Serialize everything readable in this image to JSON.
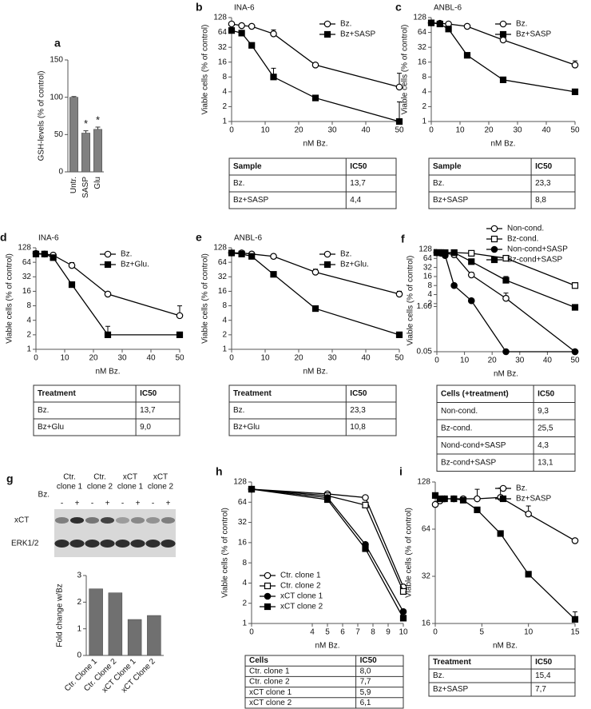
{
  "chart_data": [
    {
      "panel": "a",
      "type": "bar",
      "categories": [
        "Untr.",
        "SASP",
        "Glu"
      ],
      "values": [
        100,
        52,
        57
      ],
      "errors": [
        1,
        3,
        3
      ],
      "color": "#808080",
      "ylabel": "GSH-levels (% of control)",
      "ylim": [
        0,
        150
      ],
      "yticks": [
        0,
        50,
        100,
        150
      ],
      "annotations": [
        {
          "category": "SASP",
          "text": "*"
        },
        {
          "category": "Glu",
          "text": "*"
        }
      ]
    },
    {
      "panel": "b",
      "type": "line",
      "title": "INA-6",
      "xlabel": "nM Bz.",
      "ylabel": "Viable cells (% of control)",
      "yscale": "log",
      "x": [
        0,
        3,
        6,
        12.5,
        25,
        50
      ],
      "xlim": [
        0,
        50
      ],
      "xticks": [
        0,
        10,
        20,
        30,
        40,
        50
      ],
      "ylim": [
        1,
        128
      ],
      "yticks": [
        1,
        2,
        4,
        8,
        16,
        32,
        64,
        128
      ],
      "legend": "upper right",
      "series": [
        {
          "name": "Bz.",
          "color": "#000000",
          "marker": "circle",
          "filled": false,
          "values": [
            95,
            88,
            85,
            60,
            14,
            5
          ],
          "errors": [
            null,
            null,
            null,
            12,
            null,
            4.5
          ]
        },
        {
          "name": "Bz+SASP",
          "color": "#000000",
          "marker": "square",
          "filled": true,
          "values": [
            70,
            62,
            35,
            8,
            3,
            1
          ],
          "errors": [
            null,
            null,
            null,
            4,
            null,
            1.5
          ]
        }
      ],
      "table": {
        "columns": [
          "Sample",
          "IC50"
        ],
        "rows": [
          [
            "Bz.",
            "13,7"
          ],
          [
            "Bz+SASP",
            "4,4"
          ]
        ]
      }
    },
    {
      "panel": "c",
      "type": "line",
      "title": "ANBL-6",
      "xlabel": "nM Bz.",
      "ylabel": "Viable cells (% of control)",
      "yscale": "log",
      "x": [
        0,
        3,
        6,
        12.5,
        25,
        50
      ],
      "xlim": [
        0,
        50
      ],
      "xticks": [
        0,
        10,
        20,
        30,
        40,
        50
      ],
      "ylim": [
        1,
        128
      ],
      "yticks": [
        1,
        2,
        4,
        8,
        16,
        32,
        64,
        128
      ],
      "legend": "upper right",
      "series": [
        {
          "name": "Bz.",
          "color": "#000000",
          "marker": "circle",
          "filled": false,
          "values": [
            100,
            98,
            95,
            85,
            45,
            14
          ],
          "errors": [
            null,
            null,
            null,
            null,
            10,
            3
          ]
        },
        {
          "name": "Bz+SASP",
          "color": "#000000",
          "marker": "square",
          "filled": true,
          "values": [
            100,
            95,
            75,
            22,
            7,
            4
          ],
          "errors": [
            null,
            null,
            null,
            null,
            null,
            null
          ]
        }
      ],
      "table": {
        "columns": [
          "Sample",
          "IC50"
        ],
        "rows": [
          [
            "Bz.",
            "23,3"
          ],
          [
            "Bz+SASP",
            "8,8"
          ]
        ]
      }
    },
    {
      "panel": "d",
      "type": "line",
      "title": "INA-6",
      "xlabel": "nM Bz.",
      "ylabel": "Viable cells (% of control)",
      "yscale": "log",
      "x": [
        0,
        3,
        6,
        12.5,
        25,
        50
      ],
      "xlim": [
        0,
        50
      ],
      "xticks": [
        0,
        10,
        20,
        30,
        40,
        50
      ],
      "ylim": [
        1,
        128
      ],
      "yticks": [
        1,
        2,
        4,
        8,
        16,
        32,
        64,
        128
      ],
      "legend": "upper right",
      "series": [
        {
          "name": "Bz.",
          "color": "#000000",
          "marker": "circle",
          "filled": false,
          "values": [
            98,
            95,
            90,
            55,
            14,
            5
          ],
          "errors": [
            null,
            null,
            null,
            8,
            null,
            3
          ]
        },
        {
          "name": "Bz+Glu.",
          "color": "#000000",
          "marker": "square",
          "filled": true,
          "values": [
            95,
            95,
            80,
            22,
            2,
            2
          ],
          "errors": [
            null,
            null,
            null,
            3,
            1,
            null
          ]
        }
      ],
      "table": {
        "columns": [
          "Treatment",
          "IC50"
        ],
        "rows": [
          [
            "Bz.",
            "13,7"
          ],
          [
            "Bz+Glu",
            "9,0"
          ]
        ]
      }
    },
    {
      "panel": "e",
      "type": "line",
      "title": "ANBL-6",
      "xlabel": "nM Bz.",
      "ylabel": "Viable cells (% of control)",
      "yscale": "log",
      "x": [
        0,
        3,
        6,
        12.5,
        25,
        50
      ],
      "xlim": [
        0,
        50
      ],
      "xticks": [
        0,
        10,
        20,
        30,
        40,
        50
      ],
      "ylim": [
        1,
        128
      ],
      "yticks": [
        1,
        2,
        4,
        8,
        16,
        32,
        64,
        128
      ],
      "legend": "upper right",
      "series": [
        {
          "name": "Bz.",
          "color": "#000000",
          "marker": "circle",
          "filled": false,
          "values": [
            100,
            100,
            95,
            85,
            40,
            14
          ],
          "errors": [
            null,
            null,
            null,
            null,
            6,
            2
          ]
        },
        {
          "name": "Bz+Glu.",
          "color": "#000000",
          "marker": "square",
          "filled": true,
          "values": [
            100,
            95,
            85,
            36,
            7,
            2
          ],
          "errors": [
            null,
            null,
            null,
            null,
            1,
            null
          ]
        }
      ],
      "table": {
        "columns": [
          "Treatment",
          "IC50"
        ],
        "rows": [
          [
            "Bz.",
            "23,3"
          ],
          [
            "Bz+Glu",
            "10,8"
          ]
        ]
      }
    },
    {
      "panel": "f",
      "type": "line",
      "xlabel": "nM Bz.",
      "ylabel": "Viable cells (% of control)",
      "yscale": "log",
      "x": [
        0,
        1.5,
        3,
        6.25,
        12.5,
        25,
        50
      ],
      "xlim": [
        0,
        50
      ],
      "xticks": [
        0,
        10,
        20,
        30,
        40,
        50
      ],
      "ylim": [
        0.05,
        128
      ],
      "yticks": [
        0.05,
        {
          "value": 1.6,
          "label": "1.60"
        },
        2,
        4,
        8,
        16,
        32,
        64,
        128
      ],
      "legend": "above",
      "series": [
        {
          "name": "Non-cond.",
          "color": "#000000",
          "marker": "circle",
          "filled": false,
          "values": [
            100,
            100,
            95,
            85,
            18,
            3,
            0.05
          ],
          "errors": [
            null,
            null,
            null,
            null,
            4,
            1.5,
            null
          ]
        },
        {
          "name": "Bz-cond.",
          "color": "#000000",
          "marker": "square",
          "filled": false,
          "values": [
            100,
            100,
            100,
            100,
            95,
            65,
            8
          ],
          "errors": [
            null,
            null,
            null,
            null,
            null,
            null,
            2
          ]
        },
        {
          "name": "Non-cond+SASP",
          "color": "#000000",
          "marker": "circle",
          "filled": true,
          "values": [
            100,
            95,
            80,
            8,
            2.5,
            0.05,
            0.05
          ],
          "errors": [
            null,
            null,
            null,
            null,
            null,
            null,
            null
          ]
        },
        {
          "name": "Bz-cond+SASP",
          "color": "#000000",
          "marker": "square",
          "filled": true,
          "values": [
            100,
            100,
            95,
            100,
            50,
            12,
            1.5
          ],
          "errors": [
            null,
            null,
            null,
            null,
            null,
            4,
            null
          ]
        }
      ],
      "table": {
        "columns": [
          "Cells (+treatment)",
          "IC50"
        ],
        "rows": [
          [
            "Non-cond.",
            "9,3"
          ],
          [
            "Bz-cond.",
            "25,5"
          ],
          [
            "Nond-cond+SASP",
            "4,3"
          ],
          [
            "Bz-cond+SASP",
            "13,1"
          ]
        ]
      }
    },
    {
      "panel": "g",
      "type": "bar",
      "blot": {
        "groups": [
          [
            "Ctr.",
            "clone 1"
          ],
          [
            "Ctr.",
            "clone 2"
          ],
          [
            "xCT",
            "clone 1"
          ],
          [
            "xCT",
            "clone 2"
          ]
        ],
        "treatment": "Bz.",
        "lanes": [
          "-",
          "+",
          "-",
          "+",
          "-",
          "+",
          "-",
          "+"
        ],
        "proteins": [
          "xCT",
          "ERK1/2"
        ]
      },
      "categories": [
        "Ctr. Clone 1",
        "Ctr. Clone 2",
        "xCT Clone 1",
        "xCT Clone 2"
      ],
      "values": [
        2.5,
        2.35,
        1.35,
        1.5
      ],
      "color": "#707070",
      "ylabel": "Fold change w/Bz",
      "ylim": [
        0,
        3
      ],
      "yticks": [
        0,
        1,
        2,
        3
      ]
    },
    {
      "panel": "h",
      "type": "line",
      "xlabel": "nM Bz.",
      "ylabel": "Viable cells (% of control)",
      "yscale": "log",
      "x": [
        0,
        5,
        7.5,
        10
      ],
      "xlim": [
        0,
        10
      ],
      "xticks": [
        0,
        4,
        5,
        6,
        7,
        8,
        9,
        10
      ],
      "ylim": [
        1,
        128
      ],
      "yticks": [
        1,
        2,
        4,
        8,
        16,
        32,
        64,
        128
      ],
      "legend": "lower left",
      "series": [
        {
          "name": "Ctr. clone 1",
          "color": "#000000",
          "marker": "circle",
          "filled": false,
          "values": [
            100,
            85,
            75,
            3.5
          ]
        },
        {
          "name": "Ctr. clone 2",
          "color": "#000000",
          "marker": "square",
          "filled": false,
          "values": [
            100,
            80,
            58,
            3
          ]
        },
        {
          "name": "xCT clone 1",
          "color": "#000000",
          "marker": "circle",
          "filled": true,
          "values": [
            100,
            75,
            15,
            1.5
          ]
        },
        {
          "name": "xCT clone 2",
          "color": "#000000",
          "marker": "square",
          "filled": true,
          "values": [
            100,
            70,
            13,
            1.2
          ]
        }
      ],
      "table": {
        "columns": [
          "Cells",
          "IC50"
        ],
        "rows": [
          [
            "Ctr. clone 1",
            "8,0"
          ],
          [
            "Ctr. clone 2",
            "7,7"
          ],
          [
            "xCT clone 1",
            "5,9"
          ],
          [
            "xCT clone 2",
            "6,1"
          ]
        ]
      }
    },
    {
      "panel": "i",
      "type": "line",
      "xlabel": "nM Bz.",
      "ylabel": "Viable cells (% of control)",
      "yscale": "log",
      "x": [
        0,
        0.5,
        1,
        2,
        3,
        4.5,
        7,
        10,
        15
      ],
      "xlim": [
        0,
        15
      ],
      "xticks": [
        0,
        5,
        10,
        15
      ],
      "ylim": [
        16,
        128
      ],
      "yticks": [
        16,
        32,
        64,
        128
      ],
      "legend": "upper right",
      "series": [
        {
          "name": "Bz.",
          "color": "#000000",
          "marker": "circle",
          "filled": false,
          "values": [
            92,
            97,
            100,
            100,
            100,
            100,
            102,
            80,
            54
          ],
          "errors": [
            null,
            null,
            null,
            null,
            null,
            15,
            15,
            10,
            null
          ]
        },
        {
          "name": "Bz+SASP",
          "color": "#000000",
          "marker": "square",
          "filled": true,
          "values": [
            105,
            100,
            100,
            100,
            98,
            85,
            60,
            33,
            17
          ],
          "errors": [
            null,
            null,
            null,
            null,
            null,
            null,
            null,
            null,
            2
          ]
        }
      ],
      "table": {
        "columns": [
          "Treatment",
          "IC50"
        ],
        "rows": [
          [
            "Bz.",
            "15,4"
          ],
          [
            "Bz+SASP",
            "7,7"
          ]
        ]
      }
    }
  ]
}
